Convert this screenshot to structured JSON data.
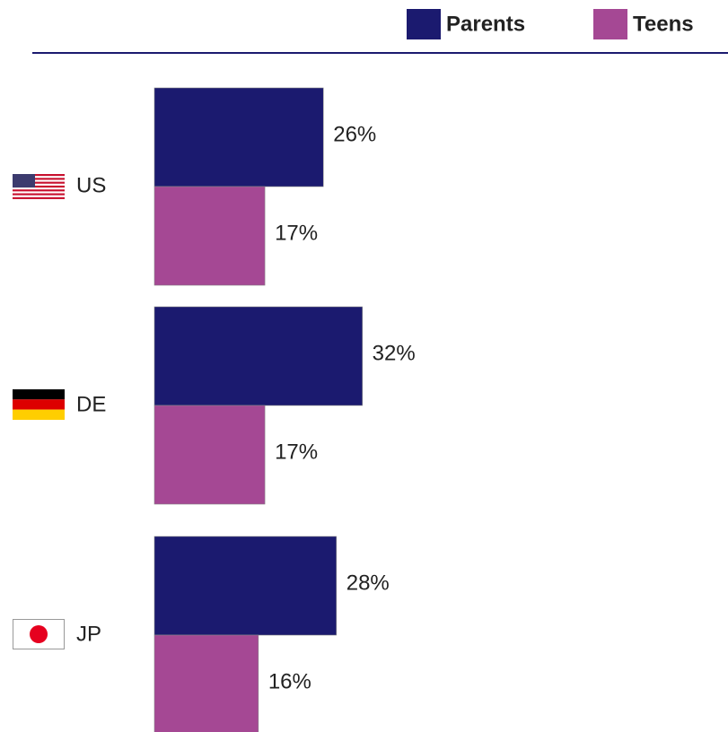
{
  "chart_data": {
    "type": "bar",
    "orientation": "horizontal",
    "categories": [
      "US",
      "DE",
      "JP"
    ],
    "series": [
      {
        "name": "Parents",
        "color": "#1b1a6f",
        "values": [
          26,
          32,
          28
        ],
        "value_labels": [
          "26%",
          "32%",
          "28%"
        ]
      },
      {
        "name": "Teens",
        "color": "#a54894",
        "values": [
          17,
          17,
          16
        ],
        "value_labels": [
          "17%",
          "17%",
          "16%"
        ]
      }
    ]
  }
}
